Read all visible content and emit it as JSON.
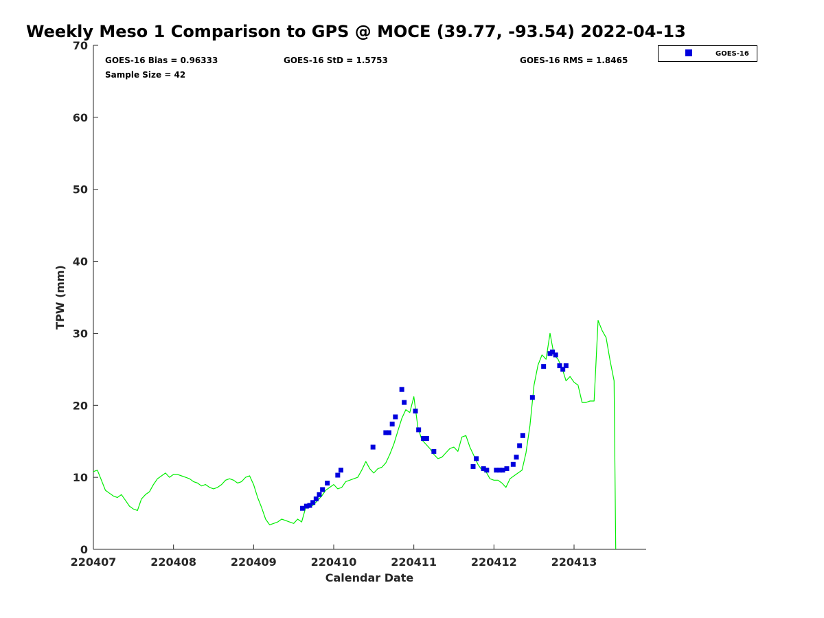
{
  "chart_data": {
    "type": "scatter",
    "title": "Weekly Meso 1 Comparison to GPS @ MOCE (39.77, -93.54) 2022-04-13",
    "xlabel": "Calendar Date",
    "ylabel": "TPW (mm)",
    "xlim": [
      220407,
      220413.9
    ],
    "ylim": [
      0,
      70
    ],
    "x_ticks": [
      220407,
      220408,
      220409,
      220410,
      220411,
      220412,
      220413
    ],
    "x_tick_labels": [
      "220407",
      "220408",
      "220409",
      "220410",
      "220411",
      "220412",
      "220413"
    ],
    "y_ticks": [
      0,
      10,
      20,
      30,
      40,
      50,
      60,
      70
    ],
    "y_tick_labels": [
      "0",
      "10",
      "20",
      "30",
      "40",
      "50",
      "60",
      "70"
    ],
    "stats": {
      "bias": "GOES-16 Bias = 0.96333",
      "std": "GOES-16 StD = 1.5753",
      "rms": "GOES-16 RMS = 1.8465",
      "sample": "Sample Size = 42"
    },
    "legend": {
      "position": "top-right",
      "entries": [
        "GOES-16"
      ]
    },
    "series": [
      {
        "name": "GOES-16",
        "type": "scatter",
        "marker": "square",
        "color": "#0000dd",
        "x": [
          220409.61,
          220409.66,
          220409.7,
          220409.74,
          220409.78,
          220409.82,
          220409.86,
          220409.92,
          220410.05,
          220410.09,
          220410.49,
          220410.65,
          220410.69,
          220410.73,
          220410.77,
          220410.85,
          220410.88,
          220411.02,
          220411.06,
          220411.12,
          220411.16,
          220411.25,
          220411.74,
          220411.78,
          220411.87,
          220411.91,
          220412.03,
          220412.07,
          220412.11,
          220412.16,
          220412.24,
          220412.28,
          220412.32,
          220412.36,
          220412.48,
          220412.62,
          220412.7,
          220412.73,
          220412.77,
          220412.82,
          220412.86,
          220412.9
        ],
        "y": [
          5.7,
          6.0,
          6.1,
          6.5,
          7.0,
          7.6,
          8.3,
          9.2,
          10.3,
          11.0,
          14.2,
          16.2,
          16.2,
          17.4,
          18.4,
          22.2,
          20.4,
          19.2,
          16.6,
          15.4,
          15.4,
          13.6,
          11.5,
          12.6,
          11.2,
          11.0,
          11.0,
          11.0,
          11.0,
          11.2,
          11.8,
          12.8,
          14.4,
          15.8,
          21.1,
          25.4,
          27.2,
          27.4,
          27.0,
          25.5,
          25.0,
          25.5
        ]
      },
      {
        "name": "GPS",
        "type": "line",
        "color": "#00ee00",
        "x": [
          220407.0,
          220407.05,
          220407.1,
          220407.15,
          220407.2,
          220407.25,
          220407.3,
          220407.35,
          220407.4,
          220407.45,
          220407.5,
          220407.55,
          220407.6,
          220407.65,
          220407.7,
          220407.75,
          220407.8,
          220407.85,
          220407.9,
          220407.95,
          220408.0,
          220408.05,
          220408.1,
          220408.15,
          220408.2,
          220408.25,
          220408.3,
          220408.35,
          220408.4,
          220408.45,
          220408.5,
          220408.55,
          220408.6,
          220408.65,
          220408.7,
          220408.75,
          220408.8,
          220408.85,
          220408.9,
          220408.95,
          220409.0,
          220409.05,
          220409.1,
          220409.15,
          220409.2,
          220409.25,
          220409.3,
          220409.35,
          220409.4,
          220409.45,
          220409.5,
          220409.55,
          220409.6,
          220409.65,
          220409.7,
          220409.75,
          220409.8,
          220409.85,
          220409.9,
          220409.95,
          220410.0,
          220410.05,
          220410.1,
          220410.15,
          220410.2,
          220410.25,
          220410.3,
          220410.35,
          220410.4,
          220410.45,
          220410.5,
          220410.55,
          220410.6,
          220410.65,
          220410.7,
          220410.75,
          220410.8,
          220410.85,
          220410.9,
          220410.95,
          220411.0,
          220411.05,
          220411.1,
          220411.15,
          220411.2,
          220411.25,
          220411.3,
          220411.35,
          220411.4,
          220411.45,
          220411.5,
          220411.55,
          220411.6,
          220411.65,
          220411.7,
          220411.75,
          220411.8,
          220411.85,
          220411.9,
          220411.95,
          220412.0,
          220412.05,
          220412.1,
          220412.15,
          220412.2,
          220412.25,
          220412.3,
          220412.35,
          220412.4,
          220412.45,
          220412.5,
          220412.55,
          220412.6,
          220412.65,
          220412.7,
          220412.75,
          220412.8,
          220412.85,
          220412.9,
          220412.95,
          220413.0,
          220413.05,
          220413.1,
          220413.15,
          220413.2,
          220413.25,
          220413.3,
          220413.35,
          220413.4,
          220413.45,
          220413.5,
          220413.52
        ],
        "y": [
          10.8,
          11.0,
          9.6,
          8.2,
          7.8,
          7.4,
          7.2,
          7.6,
          6.8,
          6.0,
          5.6,
          5.4,
          7.0,
          7.6,
          8.0,
          9.0,
          9.8,
          10.2,
          10.6,
          10.0,
          10.4,
          10.4,
          10.2,
          10.0,
          9.8,
          9.4,
          9.2,
          8.8,
          9.0,
          8.6,
          8.4,
          8.6,
          9.0,
          9.6,
          9.8,
          9.6,
          9.2,
          9.4,
          10.0,
          10.2,
          9.0,
          7.2,
          5.8,
          4.2,
          3.4,
          3.6,
          3.8,
          4.2,
          4.0,
          3.8,
          3.6,
          4.2,
          3.8,
          5.8,
          5.8,
          6.2,
          6.8,
          7.4,
          8.2,
          8.6,
          9.0,
          8.4,
          8.6,
          9.4,
          9.6,
          9.8,
          10.0,
          11.0,
          12.2,
          11.2,
          10.6,
          11.2,
          11.4,
          12.0,
          13.2,
          14.6,
          16.4,
          18.2,
          19.4,
          19.0,
          21.2,
          17.0,
          15.2,
          14.6,
          14.0,
          13.2,
          12.6,
          12.8,
          13.4,
          14.0,
          14.2,
          13.6,
          15.6,
          15.8,
          14.2,
          13.0,
          11.8,
          11.0,
          10.8,
          9.8,
          9.6,
          9.6,
          9.2,
          8.6,
          9.8,
          10.2,
          10.6,
          11.0,
          13.4,
          17.2,
          22.8,
          25.6,
          27.0,
          26.4,
          30.0,
          27.0,
          26.4,
          25.2,
          23.4,
          24.0,
          23.2,
          22.8,
          20.4,
          20.4,
          20.6,
          20.6,
          31.8,
          30.4,
          29.4,
          26.2,
          23.4,
          0.0
        ]
      }
    ]
  }
}
